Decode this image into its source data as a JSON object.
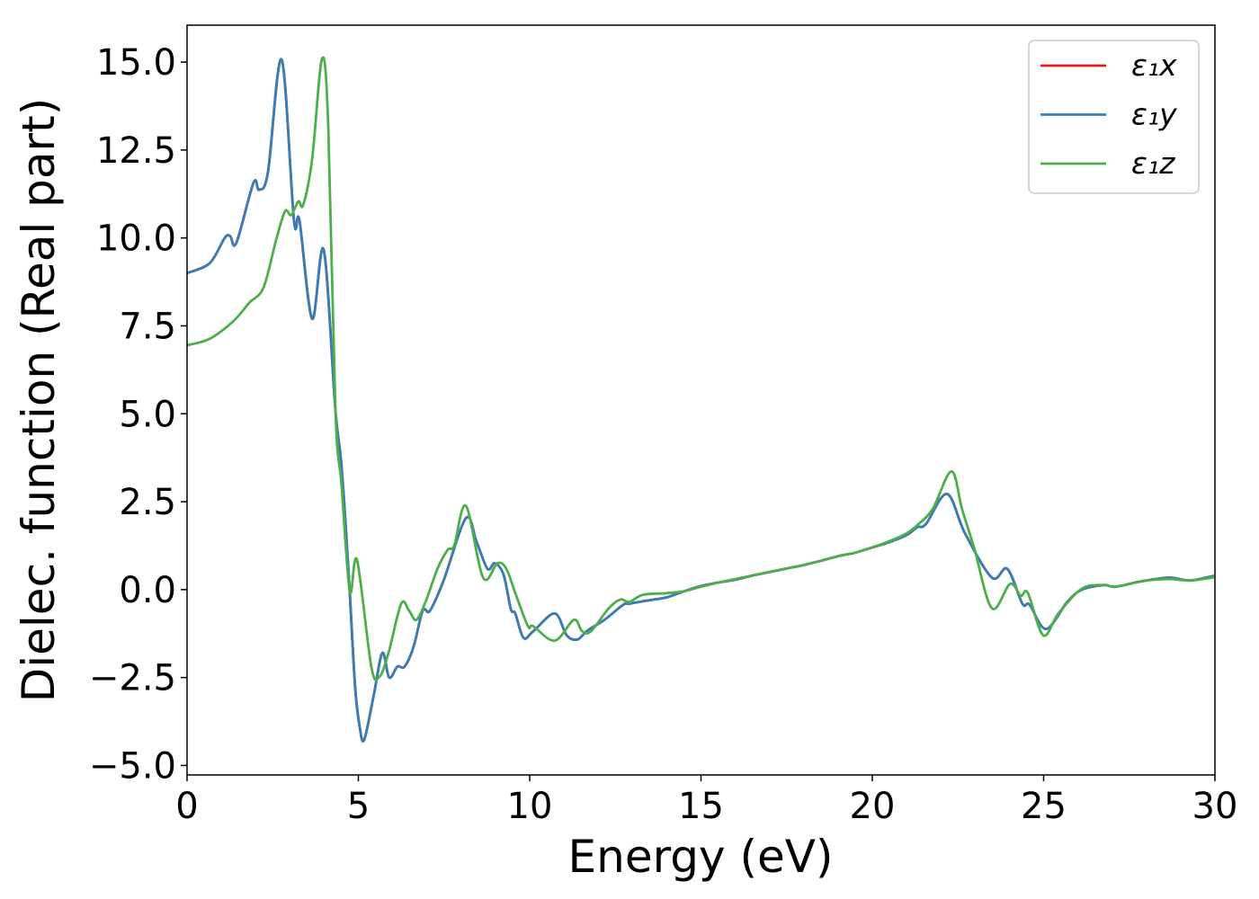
{
  "chart_data": {
    "type": "line",
    "title": "",
    "xlabel": "Energy (eV)",
    "ylabel": "Dielec. function (Real part)",
    "xlim": [
      0,
      30
    ],
    "ylim": [
      -5.27,
      16.05
    ],
    "xticks": [
      0,
      5,
      10,
      15,
      20,
      25,
      30
    ],
    "xtick_labels": [
      "0",
      "5",
      "10",
      "15",
      "20",
      "25",
      "30"
    ],
    "yticks": [
      -5.0,
      -2.5,
      0.0,
      2.5,
      5.0,
      7.5,
      10.0,
      12.5,
      15.0
    ],
    "ytick_labels": [
      "−5.0",
      "−2.5",
      "0.0",
      "2.5",
      "5.0",
      "7.5",
      "10.0",
      "12.5",
      "15.0"
    ],
    "grid": false,
    "legend_position": "top-right",
    "series": [
      {
        "name": "ε₁x",
        "color": "#e41a1c",
        "x": [
          0,
          0.66,
          1.1,
          1.26,
          1.44,
          1.94,
          2.1,
          2.36,
          2.76,
          3.12,
          3.28,
          3.65,
          3.99,
          4.33,
          4.51,
          4.72,
          4.9,
          5.04,
          5.17,
          5.45,
          5.7,
          5.9,
          6.14,
          6.35,
          6.61,
          6.88,
          7.09,
          7.48,
          8.14,
          8.45,
          8.77,
          8.98,
          9.24,
          9.45,
          9.58,
          9.82,
          10.1,
          10.73,
          11.08,
          11.39,
          11.68,
          12.18,
          12.73,
          12.91,
          13.5,
          14,
          14.5,
          15,
          15.5,
          16,
          16.5,
          17,
          17.5,
          18,
          18.5,
          19,
          19.5,
          20,
          20.5,
          21,
          21.31,
          21.57,
          22.18,
          22.7,
          23.49,
          23.94,
          24.38,
          24.59,
          25.07,
          25.69,
          26.12,
          26.77,
          27.09,
          27.87,
          28.66,
          29.27,
          29.97
        ],
        "y": [
          9.0,
          9.28,
          10.0,
          10.05,
          9.86,
          11.57,
          11.37,
          11.86,
          15.07,
          10.5,
          10.5,
          7.7,
          9.66,
          5.1,
          3.5,
          0.4,
          -2.7,
          -3.9,
          -4.27,
          -3.0,
          -1.8,
          -2.5,
          -2.19,
          -2.19,
          -1.63,
          -0.6,
          -0.6,
          0.24,
          2.03,
          1.36,
          0.59,
          0.75,
          0.42,
          -0.55,
          -0.68,
          -1.37,
          -1.19,
          -0.68,
          -1.3,
          -1.42,
          -1.17,
          -0.86,
          -0.43,
          -0.4,
          -0.3,
          -0.22,
          -0.05,
          0.1,
          0.2,
          0.28,
          0.4,
          0.5,
          0.6,
          0.7,
          0.82,
          0.95,
          1.05,
          1.2,
          1.35,
          1.55,
          1.77,
          1.87,
          2.72,
          1.61,
          0.34,
          0.59,
          -0.4,
          -0.43,
          -1.12,
          -0.35,
          0.0,
          0.13,
          0.08,
          0.24,
          0.34,
          0.26,
          0.39
        ]
      },
      {
        "name": "ε₁y",
        "color": "#377eb8",
        "x": [
          0,
          0.66,
          1.1,
          1.26,
          1.44,
          1.94,
          2.1,
          2.36,
          2.76,
          3.12,
          3.28,
          3.65,
          3.99,
          4.33,
          4.51,
          4.72,
          4.9,
          5.04,
          5.17,
          5.45,
          5.7,
          5.9,
          6.14,
          6.35,
          6.61,
          6.88,
          7.09,
          7.48,
          8.14,
          8.45,
          8.77,
          8.98,
          9.24,
          9.45,
          9.58,
          9.82,
          10.1,
          10.73,
          11.08,
          11.39,
          11.68,
          12.18,
          12.73,
          12.91,
          13.5,
          14,
          14.5,
          15,
          15.5,
          16,
          16.5,
          17,
          17.5,
          18,
          18.5,
          19,
          19.5,
          20,
          20.5,
          21,
          21.31,
          21.57,
          22.18,
          22.7,
          23.49,
          23.94,
          24.38,
          24.59,
          25.07,
          25.69,
          26.12,
          26.77,
          27.09,
          27.87,
          28.66,
          29.27,
          29.97
        ],
        "y": [
          9.0,
          9.28,
          10.0,
          10.05,
          9.86,
          11.57,
          11.37,
          11.86,
          15.07,
          10.5,
          10.5,
          7.7,
          9.66,
          5.1,
          3.5,
          0.4,
          -2.7,
          -3.9,
          -4.27,
          -3.0,
          -1.8,
          -2.5,
          -2.19,
          -2.19,
          -1.63,
          -0.6,
          -0.6,
          0.24,
          2.03,
          1.36,
          0.59,
          0.75,
          0.42,
          -0.55,
          -0.68,
          -1.37,
          -1.19,
          -0.68,
          -1.3,
          -1.42,
          -1.17,
          -0.86,
          -0.43,
          -0.4,
          -0.3,
          -0.22,
          -0.05,
          0.1,
          0.2,
          0.28,
          0.4,
          0.5,
          0.6,
          0.7,
          0.82,
          0.95,
          1.05,
          1.2,
          1.35,
          1.55,
          1.77,
          1.87,
          2.72,
          1.61,
          0.34,
          0.59,
          -0.4,
          -0.43,
          -1.12,
          -0.35,
          0.0,
          0.13,
          0.08,
          0.24,
          0.34,
          0.26,
          0.39
        ]
      },
      {
        "name": "ε₁z",
        "color": "#4daf4a",
        "x": [
          0,
          0.66,
          1.36,
          1.81,
          2.23,
          2.6,
          2.86,
          3.04,
          3.25,
          3.39,
          3.65,
          3.94,
          4.12,
          4.33,
          4.51,
          4.75,
          4.96,
          5.38,
          5.62,
          5.88,
          6.25,
          6.48,
          6.69,
          6.96,
          7.32,
          7.61,
          7.8,
          8.14,
          8.64,
          9.06,
          9.32,
          9.58,
          9.95,
          10.1,
          10.73,
          11.29,
          11.52,
          11.78,
          12.31,
          12.65,
          12.91,
          13.3,
          14,
          14.5,
          15,
          15.5,
          16,
          16.5,
          17,
          17.5,
          18,
          18.5,
          19,
          19.5,
          20,
          20.5,
          21,
          21.31,
          21.76,
          22.31,
          22.62,
          22.97,
          23.49,
          24.02,
          24.33,
          24.54,
          24.99,
          25.43,
          26.12,
          26.77,
          27.09,
          27.87,
          28.66,
          29.27,
          29.97
        ],
        "y": [
          6.95,
          7.13,
          7.64,
          8.15,
          8.59,
          9.95,
          10.76,
          10.65,
          11.04,
          10.94,
          12.24,
          15.1,
          13.2,
          5.1,
          2.97,
          -0.05,
          0.84,
          -2.21,
          -2.47,
          -1.8,
          -0.4,
          -0.6,
          -0.86,
          -0.35,
          0.62,
          1.13,
          1.26,
          2.38,
          0.34,
          0.75,
          0.59,
          -0.1,
          -1.04,
          -1.04,
          -1.45,
          -0.86,
          -1.17,
          -1.19,
          -0.53,
          -0.28,
          -0.35,
          -0.15,
          -0.1,
          -0.05,
          0.08,
          0.2,
          0.3,
          0.4,
          0.5,
          0.6,
          0.7,
          0.82,
          0.95,
          1.05,
          1.2,
          1.38,
          1.6,
          1.83,
          2.29,
          3.36,
          2.29,
          1.19,
          -0.53,
          0.16,
          -0.17,
          -0.1,
          -1.3,
          -0.68,
          0.03,
          0.13,
          0.08,
          0.24,
          0.3,
          0.26,
          0.35
        ]
      }
    ]
  }
}
